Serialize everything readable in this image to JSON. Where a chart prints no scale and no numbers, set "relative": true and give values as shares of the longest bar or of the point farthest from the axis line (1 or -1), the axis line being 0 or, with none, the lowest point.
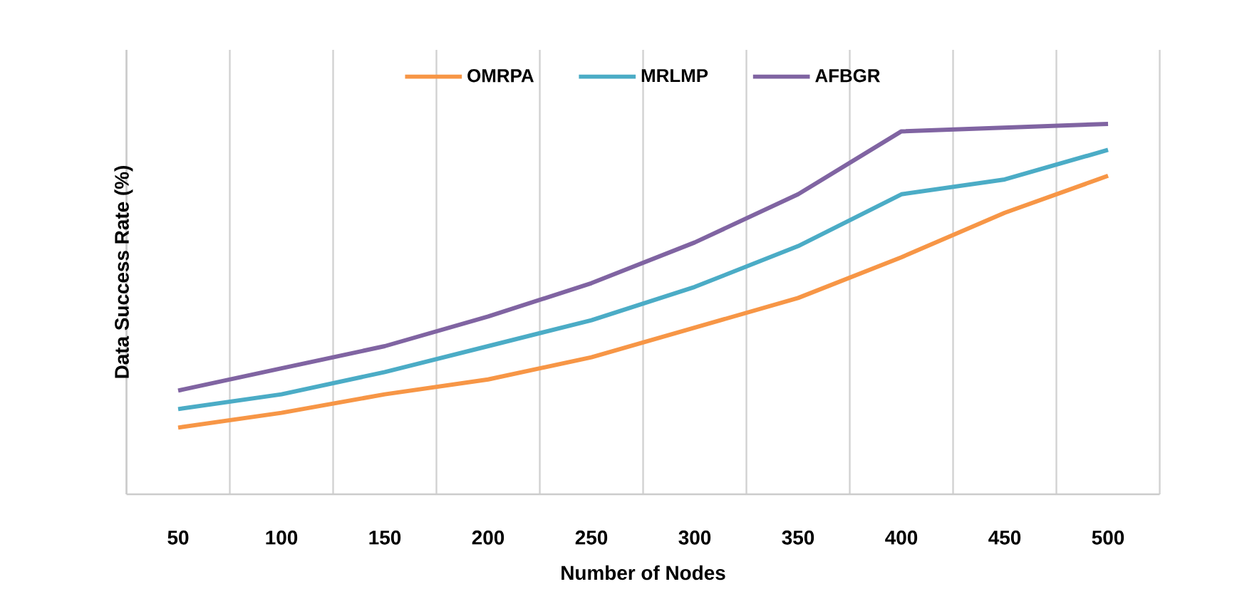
{
  "chart_data": {
    "type": "line",
    "relative": true,
    "xlabel": "Number of Nodes",
    "ylabel": "Data Success Rate (%)",
    "categories": [
      "50",
      "100",
      "150",
      "200",
      "250",
      "300",
      "350",
      "400",
      "450",
      "500"
    ],
    "series": [
      {
        "name": "OMRPA",
        "color": "#f79646",
        "values": [
          0.18,
          0.22,
          0.27,
          0.31,
          0.37,
          0.45,
          0.53,
          0.64,
          0.76,
          0.86
        ]
      },
      {
        "name": "MRLMP",
        "color": "#4bacc6",
        "values": [
          0.23,
          0.27,
          0.33,
          0.4,
          0.47,
          0.56,
          0.67,
          0.81,
          0.85,
          0.93
        ]
      },
      {
        "name": "AFBGR",
        "color": "#8064a2",
        "values": [
          0.28,
          0.34,
          0.4,
          0.48,
          0.57,
          0.68,
          0.81,
          0.98,
          0.99,
          1.0
        ]
      }
    ],
    "grid": "x",
    "legend": "top",
    "marker": "none",
    "line_style": "solid"
  }
}
